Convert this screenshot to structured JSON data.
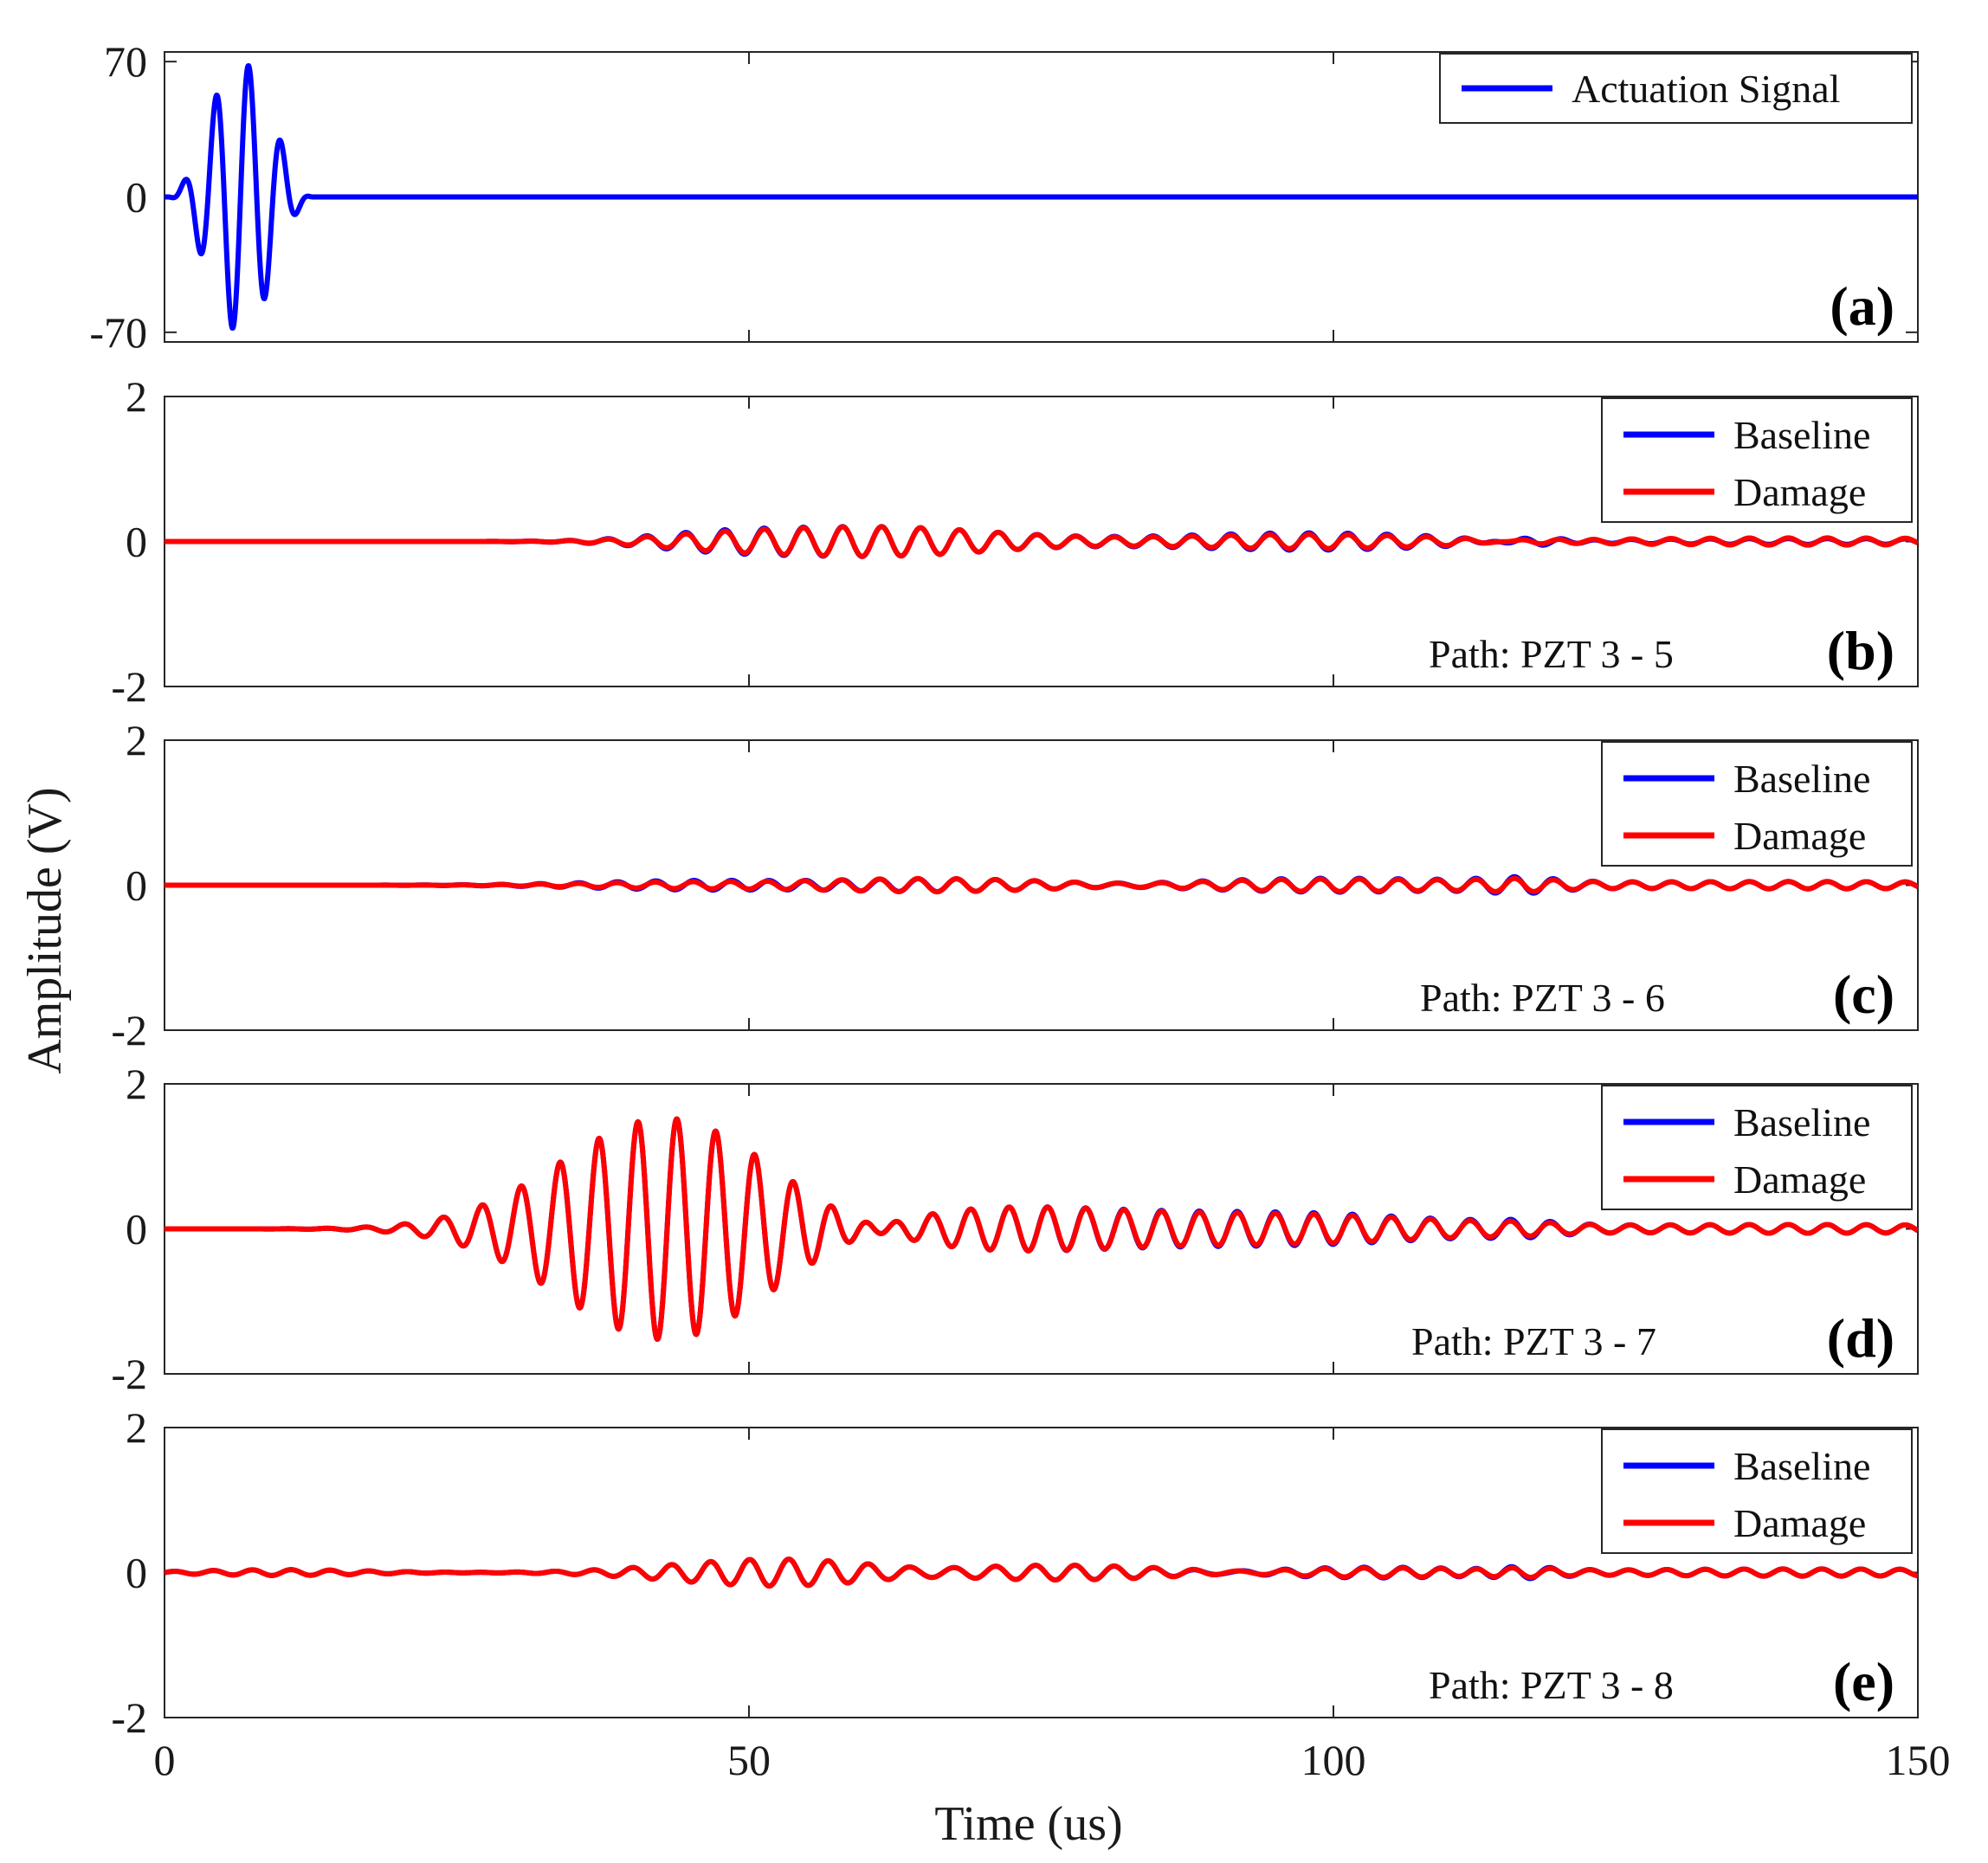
{
  "chart_data": {
    "type": "line",
    "xlabel": "Time (us)",
    "ylabel": "Amplitude (V)",
    "xlim": [
      0,
      150
    ],
    "xticks": [
      0,
      50,
      100,
      150
    ],
    "xtick_labels": [
      "0",
      "50",
      "100",
      "150"
    ],
    "colors": {
      "baseline": "#0000ff",
      "damage": "#ff0000"
    },
    "panels": [
      {
        "label": "(a)",
        "ylim": [
          -75,
          75
        ],
        "yticks": [
          70,
          0,
          -70
        ],
        "ytick_labels": [
          "70",
          "0",
          "-70"
        ],
        "path_text": "",
        "legend": [
          "Actuation Signal"
        ],
        "series": [
          {
            "name": "Actuation Signal",
            "color": "#0000ff",
            "type": "actuation",
            "center_us": 6.5,
            "freq_mhz": 0.36,
            "peak": 70,
            "half_width_us": 6.2
          }
        ]
      },
      {
        "label": "(b)",
        "ylim": [
          -2,
          2
        ],
        "yticks": [
          2,
          0,
          -2
        ],
        "ytick_labels": [
          "2",
          "0",
          "-2"
        ],
        "path_text": "Path: PZT 3 - 5",
        "legend": [
          "Baseline",
          "Damage"
        ],
        "series": [
          {
            "name": "Baseline",
            "color": "#0000ff",
            "packets": [
              [
                47,
                6,
                0.08
              ],
              [
                61,
                10,
                0.2
              ],
              [
                98,
                12,
                0.12
              ],
              [
                117,
                3,
                0.08
              ],
              [
                140,
                20,
                0.04
              ]
            ]
          },
          {
            "name": "Damage",
            "color": "#ff0000",
            "packets": [
              [
                47,
                6,
                0.06
              ],
              [
                61,
                10,
                0.2
              ],
              [
                98,
                12,
                0.1
              ],
              [
                117,
                3,
                0.05
              ],
              [
                140,
                20,
                0.05
              ]
            ]
          }
        ]
      },
      {
        "label": "(c)",
        "ylim": [
          -2,
          2
        ],
        "yticks": [
          2,
          0,
          -2
        ],
        "ytick_labels": [
          "2",
          "0",
          "-2"
        ],
        "path_text": "Path: PZT 3 - 6",
        "legend": [
          "Baseline",
          "Damage"
        ],
        "series": [
          {
            "name": "Baseline",
            "color": "#0000ff",
            "packets": [
              [
                48,
                10,
                0.08
              ],
              [
                64,
                12,
                0.1
              ],
              [
                99,
                12,
                0.09
              ],
              [
                116,
                3,
                0.06
              ],
              [
                140,
                20,
                0.05
              ]
            ]
          },
          {
            "name": "Damage",
            "color": "#ff0000",
            "packets": [
              [
                48,
                10,
                0.06
              ],
              [
                64,
                12,
                0.1
              ],
              [
                99,
                12,
                0.08
              ],
              [
                116,
                3,
                0.04
              ],
              [
                140,
                20,
                0.05
              ]
            ]
          }
        ]
      },
      {
        "label": "(d)",
        "ylim": [
          -2,
          2
        ],
        "yticks": [
          2,
          0,
          -2
        ],
        "ytick_labels": [
          "2",
          "0",
          "-2"
        ],
        "path_text": "Path: PZT 3 - 7",
        "legend": [
          "Baseline",
          "Damage"
        ],
        "series": [
          {
            "name": "Baseline",
            "color": "#0000ff",
            "packets": [
              [
                43,
                9,
                1.55
              ],
              [
                72,
                13,
                0.3
              ],
              [
                95,
                14,
                0.22
              ],
              [
                116,
                3,
                0.05
              ],
              [
                140,
                20,
                0.06
              ]
            ]
          },
          {
            "name": "Damage",
            "color": "#ff0000",
            "packets": [
              [
                43,
                9,
                1.55
              ],
              [
                72,
                13,
                0.3
              ],
              [
                95,
                14,
                0.2
              ],
              [
                116,
                3,
                0.03
              ],
              [
                140,
                20,
                0.06
              ]
            ]
          }
        ]
      },
      {
        "label": "(e)",
        "ylim": [
          -2,
          2
        ],
        "yticks": [
          2,
          0,
          -2
        ],
        "ytick_labels": [
          "2",
          "0",
          "-2"
        ],
        "path_text": "Path: PZT 3 - 8",
        "legend": [
          "Baseline",
          "Damage"
        ],
        "series": [
          {
            "name": "Baseline",
            "color": "#0000ff",
            "packets": [
              [
                10,
                7,
                0.04
              ],
              [
                53,
                9,
                0.2
              ],
              [
                78,
                14,
                0.12
              ],
              [
                100,
                12,
                0.1
              ],
              [
                116,
                3,
                0.07
              ],
              [
                140,
                20,
                0.05
              ]
            ]
          },
          {
            "name": "Damage",
            "color": "#ff0000",
            "packets": [
              [
                10,
                7,
                0.04
              ],
              [
                53,
                9,
                0.2
              ],
              [
                78,
                14,
                0.12
              ],
              [
                100,
                12,
                0.09
              ],
              [
                116,
                3,
                0.05
              ],
              [
                140,
                20,
                0.05
              ]
            ]
          }
        ]
      }
    ]
  }
}
